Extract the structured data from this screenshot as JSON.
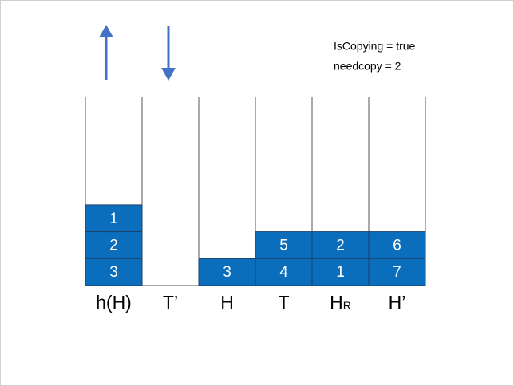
{
  "annotations": [
    "IsCopying = true",
    "needcopy = 2"
  ],
  "stacks": [
    {
      "label": "h(H)",
      "items": [
        1,
        2,
        3
      ]
    },
    {
      "label": "T’",
      "items": []
    },
    {
      "label": "H",
      "items": [
        3
      ]
    },
    {
      "label": "T",
      "items": [
        5,
        4
      ]
    },
    {
      "label": "H",
      "subscript": "R",
      "items": [
        2,
        1
      ]
    },
    {
      "label": "H’",
      "items": [
        6,
        7
      ]
    }
  ]
}
